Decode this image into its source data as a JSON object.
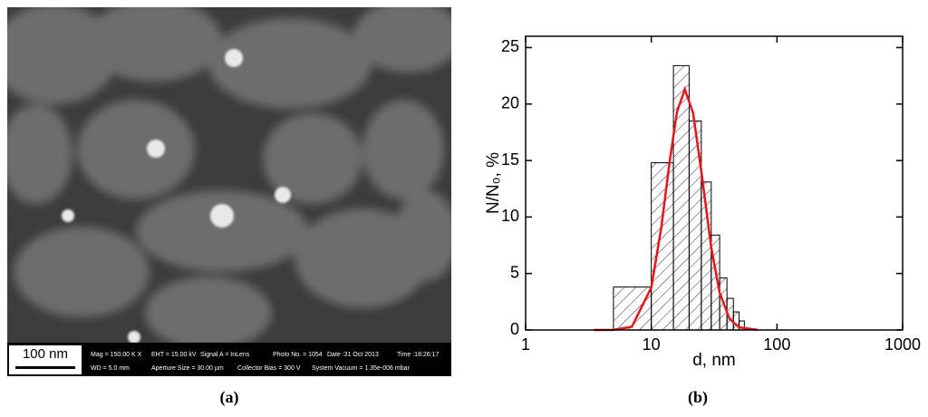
{
  "panel_labels": [
    "(a)",
    "(b)"
  ],
  "sem": {
    "scale_bar": "100 nm",
    "info": [
      "Mag = 150.00 K X",
      "EHT = 15.00 kV",
      "Signal A = InLens",
      "Photo No. = 1054",
      "Date :31 Oct 2013",
      "Time :18:26:17",
      "WD = 5.0 mm",
      "Aperture Size = 30.00 µm",
      "Collector Bias = 300 V",
      "System Vacuum = 1.35e-006 mbar"
    ]
  },
  "chart_data": {
    "type": "histogram",
    "x_label": "d, nm",
    "y_label": "N/N₀, %",
    "log_x": true,
    "xlim": [
      1,
      1000
    ],
    "xticks": [
      1,
      10,
      100,
      1000
    ],
    "ylim": [
      0,
      26
    ],
    "yticks": [
      0,
      5,
      10,
      15,
      20,
      25
    ],
    "bins": [
      5,
      10,
      15,
      20,
      25,
      30,
      35,
      40,
      45,
      50,
      55
    ],
    "counts": [
      3.8,
      14.8,
      23.4,
      18.5,
      13.1,
      8.4,
      4.6,
      2.8,
      1.6,
      0.8
    ],
    "bar_color": "#000000",
    "fit": {
      "color": "#e8141b",
      "x": [
        3.5,
        5,
        7,
        10,
        12,
        14,
        16,
        18.5,
        21.5,
        25,
        30,
        35,
        42,
        50,
        70
      ],
      "values": [
        0,
        0.01,
        0.28,
        3.76,
        9.0,
        14.9,
        19.3,
        21.3,
        19.2,
        14.1,
        7.3,
        3.3,
        0.98,
        0.23,
        0.01
      ]
    }
  }
}
